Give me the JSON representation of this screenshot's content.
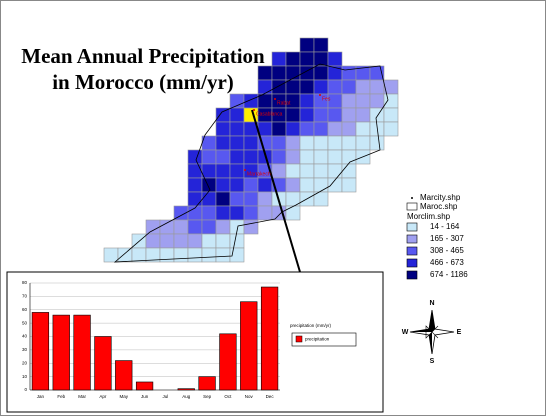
{
  "title": [
    "Mean Annual Precipitation",
    "in Morocco (mm/yr)"
  ],
  "map": {
    "cities": [
      "Rabat",
      "Fes",
      "Casablanca",
      "Marrakech"
    ],
    "legend": {
      "cities_layer": "Marcity.shp",
      "boundary_layer": "Maroc.shp",
      "climate_layer": "Morclim.shp",
      "classes": [
        {
          "label": "14 - 164",
          "color": "#c8e8f8"
        },
        {
          "label": "165 - 307",
          "color": "#a0a0f0"
        },
        {
          "label": "308 - 465",
          "color": "#5858f0"
        },
        {
          "label": "466 - 673",
          "color": "#2424d8"
        },
        {
          "label": "674 - 1186",
          "color": "#000080"
        }
      ]
    }
  },
  "compass": {
    "n": "N",
    "s": "S",
    "e": "E",
    "w": "W"
  },
  "chart_data": {
    "type": "bar",
    "categories": [
      "Jan",
      "Feb",
      "Mar",
      "Apr",
      "May",
      "Jun",
      "Jul",
      "Aug",
      "Sep",
      "Oct",
      "Nov",
      "Dec"
    ],
    "series": [
      {
        "name": "precipitation",
        "color": "#ff0000",
        "values": [
          58,
          56,
          56,
          40,
          22,
          6,
          0,
          1,
          10,
          42,
          66,
          77
        ]
      }
    ],
    "legend_title": "precipitation (mm/yr)",
    "ylim": [
      0,
      80
    ],
    "yticks": [
      0,
      10,
      20,
      30,
      40,
      50,
      60,
      70,
      80
    ],
    "grid": true
  }
}
